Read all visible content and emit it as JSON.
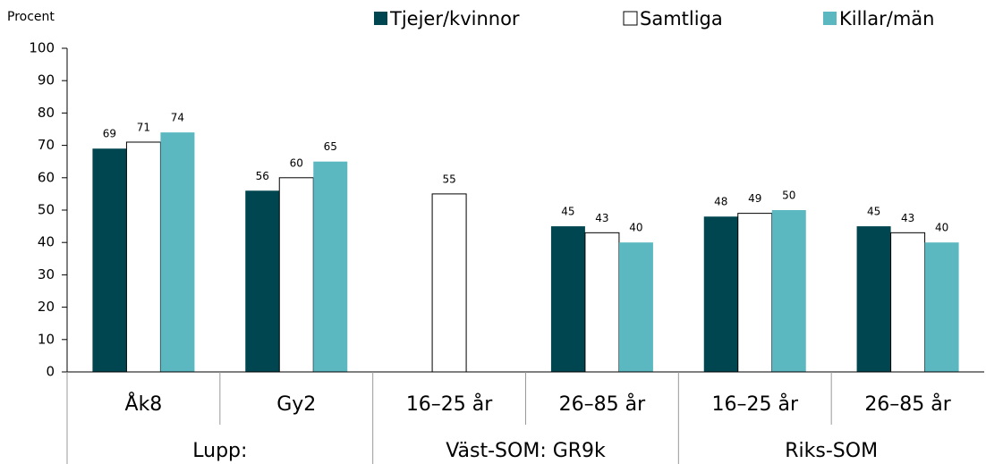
{
  "chart_data": {
    "type": "bar",
    "y_label": "Procent",
    "categories": [
      "Åk8",
      "Gy2",
      "16–25 år",
      "26–85 år",
      "16–25 år",
      "26–85 år"
    ],
    "groups": [
      "Lupp:",
      "Väst-SOM: GR9k",
      "Riks-SOM"
    ],
    "series": [
      {
        "name": "Tjejer/kvinnor",
        "color": "#004650",
        "values": [
          69,
          56,
          null,
          45,
          48,
          45
        ]
      },
      {
        "name": "Samtliga",
        "color": "#ffffff",
        "values": [
          71,
          60,
          55,
          43,
          49,
          43
        ]
      },
      {
        "name": "Killar/män",
        "color": "#5bb8c1",
        "values": [
          74,
          65,
          null,
          40,
          50,
          40
        ]
      }
    ],
    "ylim": [
      0,
      100
    ],
    "yticks": [
      0,
      10,
      20,
      30,
      40,
      50,
      60,
      70,
      80,
      90,
      100
    ],
    "grid": false,
    "legend": "top"
  }
}
